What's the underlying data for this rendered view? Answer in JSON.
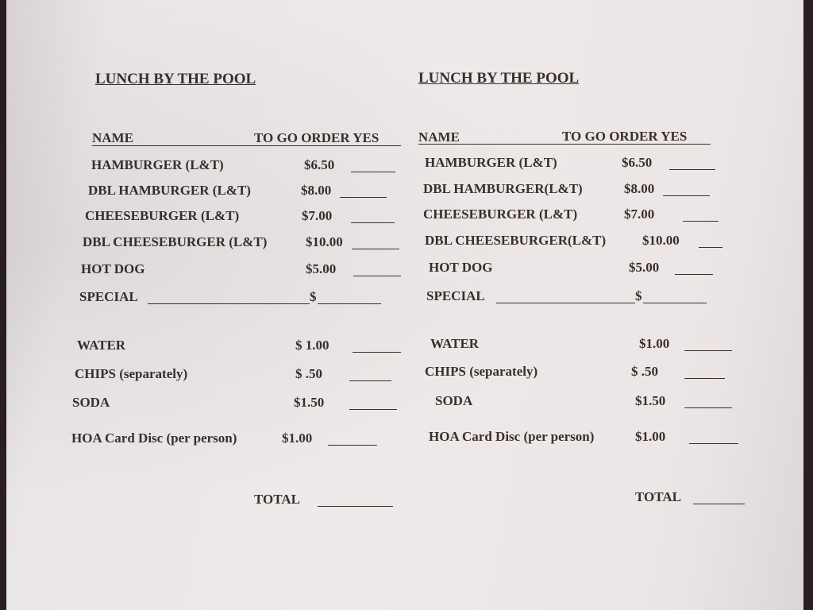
{
  "document": {
    "columns": [
      {
        "title": "LUNCH BY THE POOL",
        "header_name": "NAME",
        "header_order": "TO GO ORDER YES",
        "items": [
          {
            "label": "HAMBURGER (L&T)",
            "price": "$6.50"
          },
          {
            "label": "DBL HAMBURGER (L&T)",
            "price": "$8.00"
          },
          {
            "label": "CHEESEBURGER  (L&T)",
            "price": "$7.00"
          },
          {
            "label": "DBL CHEESEBURGER (L&T)",
            "price": "$10.00"
          },
          {
            "label": "HOT DOG",
            "price": "$5.00"
          },
          {
            "label": "SPECIAL",
            "price": "$"
          },
          {
            "label": "WATER",
            "price": "$ 1.00"
          },
          {
            "label": "CHIPS (separately)",
            "price": "$ .50"
          },
          {
            "label": "SODA",
            "price": "$1.50"
          },
          {
            "label": "HOA Card Disc (per person)",
            "price": "$1.00"
          }
        ],
        "total_label": "TOTAL"
      },
      {
        "title": "LUNCH BY THE POOL",
        "header_name": "NAME",
        "header_order": "TO GO ORDER  YES",
        "items": [
          {
            "label": "HAMBURGER (L&T)",
            "price": "$6.50"
          },
          {
            "label": "DBL HAMBURGER(L&T)",
            "price": "$8.00"
          },
          {
            "label": "CHEESEBURGER  (L&T)",
            "price": "$7.00"
          },
          {
            "label": "DBL CHEESEBURGER(L&T)",
            "price": "$10.00"
          },
          {
            "label": "HOT DOG",
            "price": "$5.00"
          },
          {
            "label": "SPECIAL",
            "price": "$"
          },
          {
            "label": "WATER",
            "price": "$1.00"
          },
          {
            "label": "CHIPS (separately)",
            "price": "$ .50"
          },
          {
            "label": "SODA",
            "price": "$1.50"
          },
          {
            "label": "HOA Card Disc (per person)",
            "price": "$1.00"
          }
        ],
        "total_label": "TOTAL"
      }
    ]
  }
}
